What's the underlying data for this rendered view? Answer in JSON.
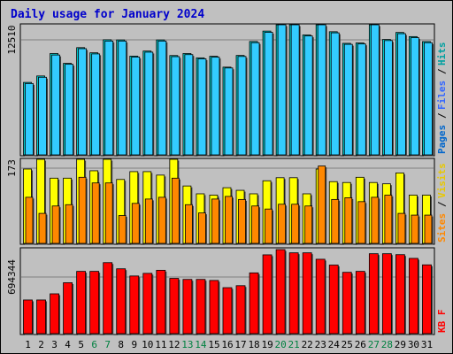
{
  "chart_data": {
    "type": "bar",
    "title": "Daily usage for January 2024",
    "colors": {
      "hits": "#00cccc",
      "files": "#33ccff",
      "pages": "#0066cc",
      "visits": "#ffff00",
      "sites": "#ff8800",
      "kbf": "#ff0000",
      "title": "#0000cc",
      "weekend_label": "#008040",
      "panel_bg": "#c0c0c0"
    },
    "categories": [
      "1",
      "2",
      "3",
      "4",
      "5",
      "6",
      "7",
      "8",
      "9",
      "10",
      "11",
      "12",
      "13",
      "14",
      "15",
      "16",
      "17",
      "18",
      "19",
      "20",
      "21",
      "22",
      "23",
      "24",
      "25",
      "26",
      "27",
      "28",
      "29",
      "30",
      "31"
    ],
    "weekend_days": [
      "6",
      "7",
      "13",
      "14",
      "20",
      "21",
      "27",
      "28"
    ],
    "panels": [
      {
        "id": "hits-files-pages",
        "ymax": 12510,
        "ymax_label": "12510",
        "legend": [
          {
            "label": "Pages",
            "color": "#0066cc"
          },
          {
            "label": "Files",
            "color": "#3366ff"
          },
          {
            "label": "Hits",
            "color": "#00a0a0"
          }
        ],
        "series": [
          {
            "name": "Hits",
            "values": [
              7880,
              8580,
              11020,
              9950,
              11660,
              11100,
              12520,
              12500,
              10740,
              11290,
              12500,
              10800,
              11020,
              10550,
              10720,
              9540,
              10810,
              12330,
              13460,
              15080,
              14660,
              13040,
              14960,
              13390,
              12130,
              12170,
              15180,
              12550,
              13310,
              12860,
              12320
            ]
          },
          {
            "name": "Files",
            "values": [
              7760,
              8440,
              10860,
              9850,
              11550,
              10980,
              12380,
              12380,
              10640,
              11170,
              12380,
              10680,
              10900,
              10450,
              10620,
              9450,
              10700,
              12200,
              13330,
              14950,
              14530,
              12930,
              14840,
              13270,
              12020,
              12060,
              15060,
              12430,
              13180,
              12740,
              12200
            ]
          }
        ]
      },
      {
        "id": "visits-sites",
        "ymax": 173,
        "ymax_label": "173",
        "legend": [
          {
            "label": "Sites",
            "color": "#ff8800"
          },
          {
            "label": "Visits",
            "color": "#e8c800"
          }
        ],
        "series": [
          {
            "name": "Visits",
            "values": [
              171,
              237,
              150,
              150,
              196,
              167,
              229,
              147,
              165,
              165,
              157,
              272,
              132,
              114,
              111,
              128,
              122,
              114,
              144,
              151,
              151,
              114,
              171,
              142,
              140,
              152,
              140,
              137,
              162,
              111,
              111
            ]
          },
          {
            "name": "Sites",
            "values": [
              106,
              69,
              86,
              89,
              152,
              139,
              139,
              64,
              92,
              102,
              106,
              150,
              89,
              70,
              102,
              108,
              101,
              86,
              79,
              90,
              90,
              86,
              178,
              101,
              105,
              96,
              106,
              111,
              69,
              65,
              65
            ]
          }
        ]
      },
      {
        "id": "kbf",
        "ymax": 694344,
        "ymax_label": "694344",
        "legend": [
          {
            "label": "KB F",
            "color": "#ff0000"
          }
        ],
        "series": [
          {
            "name": "KB F",
            "values": [
              412800,
              412800,
              488400,
              624200,
              763400,
              763400,
              870600,
              795000,
              706800,
              739200,
              777000,
              677400,
              664800,
              664800,
              652200,
              563800,
              588000,
              745000,
              966200,
              1030200,
              990800,
              990800,
              912000,
              841000,
              751800,
              763400,
              980000,
              980000,
              968500,
              922700,
              843400
            ]
          }
        ]
      }
    ]
  }
}
